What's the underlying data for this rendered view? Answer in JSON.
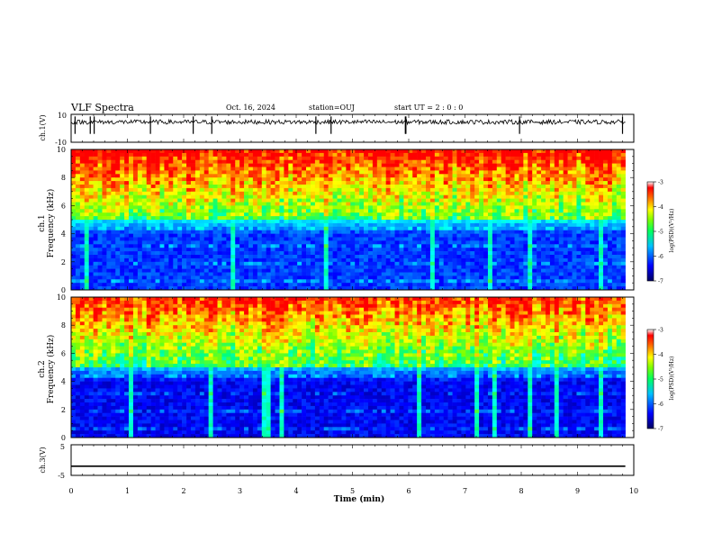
{
  "header": {
    "title": "VLF Spectra",
    "date": "Oct. 16, 2024",
    "station": "station=OUJ",
    "start": "start  UT =   2 : 0  : 0"
  },
  "chart_data": [
    {
      "type": "line",
      "panel": "ch1-waveform",
      "ylabel": "ch.1(V)",
      "ylim": [
        -10,
        10
      ],
      "yticks": [
        "10",
        "-10"
      ],
      "description_level": 4.5
    },
    {
      "type": "heatmap",
      "panel": "ch1-spectrogram",
      "ylabel": "Frequency (kHz)",
      "channel_label": "ch.1",
      "ylim": [
        0,
        10
      ],
      "yticks": [
        "0",
        "2",
        "4",
        "6",
        "8",
        "10"
      ],
      "colorbar": {
        "label": "log(PSD)(V²/Hz)",
        "range": [
          -7,
          -3
        ],
        "ticks": [
          "-3",
          "-4",
          "-5",
          "-6",
          "-7"
        ]
      }
    },
    {
      "type": "heatmap",
      "panel": "ch2-spectrogram",
      "ylabel": "Frequency (kHz)",
      "channel_label": "ch.2",
      "ylim": [
        0,
        10
      ],
      "yticks": [
        "0",
        "2",
        "4",
        "6",
        "8",
        "10"
      ],
      "colorbar": {
        "label": "log(PSD)(V²/Hz)",
        "range": [
          -7,
          -3
        ],
        "ticks": [
          "-3",
          "-4",
          "-5",
          "-6",
          "-7"
        ]
      }
    },
    {
      "type": "line",
      "panel": "ch3-waveform",
      "ylabel": "ch.3(V)",
      "ylim": [
        -5,
        5
      ],
      "yticks": [
        "5",
        "-5"
      ],
      "level": -2
    }
  ],
  "xaxis": {
    "label": "Time (min)",
    "range": [
      0,
      10
    ],
    "ticks": [
      "0",
      "1",
      "2",
      "3",
      "4",
      "5",
      "6",
      "7",
      "8",
      "9",
      "10"
    ],
    "data_end": 9.85
  },
  "colors": {
    "scale": [
      "#000080",
      "#0000ff",
      "#0080ff",
      "#00ffff",
      "#00ff80",
      "#80ff00",
      "#ffff00",
      "#ff8000",
      "#ff0000",
      "#ffffff"
    ],
    "line": "#000000"
  }
}
